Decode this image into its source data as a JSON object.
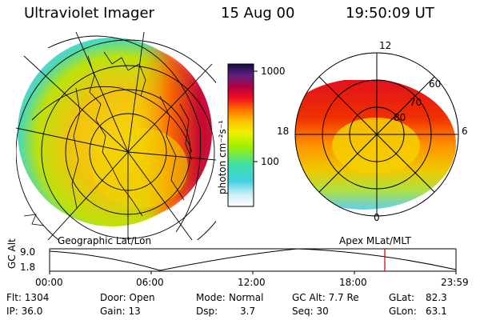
{
  "header": {
    "instrument": "Ultraviolet Imager",
    "date": "15 Aug 00",
    "time": "19:50:09 UT"
  },
  "colorbar": {
    "unit_label": "photon cm⁻²s⁻¹",
    "tick_labels": [
      "1000",
      "100"
    ]
  },
  "left_panel": {
    "caption": "Geographic Lat/Lon"
  },
  "right_panel": {
    "caption": "Apex MLat/MLT",
    "lat_labels": [
      "60",
      "70",
      "80"
    ],
    "mlt_labels": [
      "12",
      "18",
      "6",
      "0"
    ]
  },
  "orbit_plot": {
    "ylabel": "GC Alt",
    "y_ticks": [
      "9.0",
      "1.8"
    ],
    "x_ticks": [
      "00:00",
      "06:00",
      "12:00",
      "18:00",
      "23:59"
    ],
    "marker_color": "#cc0000"
  },
  "status": {
    "flt": "Flt: 1304",
    "ip": "IP: 36.0",
    "door": "Door: Open",
    "gain": "Gain: 13",
    "mode_label": "Mode:",
    "mode_value": "Normal",
    "dsp_label": "Dsp:",
    "dsp_value": "3.7",
    "gcalt": "GC Alt: 7.7 Re",
    "seq": "Seq: 30",
    "glat_label": "GLat:",
    "glat_value": "82.3",
    "glon_label": "GLon:",
    "glon_value": "63.1"
  }
}
